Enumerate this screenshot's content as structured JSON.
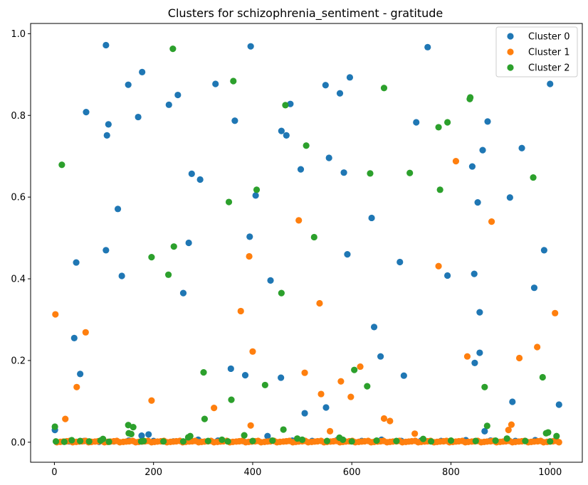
{
  "chart_data": {
    "type": "scatter",
    "title": "Clusters for schizophrenia_sentiment - gratitude",
    "xlabel": "",
    "ylabel": "",
    "xlim": [
      -48,
      1065
    ],
    "ylim": [
      -0.049,
      1.025
    ],
    "x_ticks": [
      0,
      200,
      400,
      600,
      800,
      1000
    ],
    "y_ticks": [
      0.0,
      0.2,
      0.4,
      0.6,
      0.8,
      1.0
    ],
    "y_tick_labels": [
      "0.0",
      "0.2",
      "0.4",
      "0.6",
      "0.8",
      "1.0"
    ],
    "grid": false,
    "legend_position": "top-right",
    "series": [
      {
        "name": "Cluster 0",
        "color": "#1f77b4",
        "points": [
          [
            1,
            0.03
          ],
          [
            40,
            0.255
          ],
          [
            44,
            0.44
          ],
          [
            52,
            0.167
          ],
          [
            64,
            0.808
          ],
          [
            104,
            0.972
          ],
          [
            104,
            0.47
          ],
          [
            106,
            0.751
          ],
          [
            109,
            0.778
          ],
          [
            128,
            0.571
          ],
          [
            136,
            0.407
          ],
          [
            149,
            0.875
          ],
          [
            169,
            0.796
          ],
          [
            177,
            0.906
          ],
          [
            176,
            0.016
          ],
          [
            190,
            0.019
          ],
          [
            231,
            0.826
          ],
          [
            249,
            0.85
          ],
          [
            260,
            0.365
          ],
          [
            271,
            0.488
          ],
          [
            277,
            0.657
          ],
          [
            294,
            0.643
          ],
          [
            325,
            0.877
          ],
          [
            356,
            0.18
          ],
          [
            364,
            0.787
          ],
          [
            385,
            0.164
          ],
          [
            394,
            0.503
          ],
          [
            396,
            0.969
          ],
          [
            406,
            0.604
          ],
          [
            436,
            0.396
          ],
          [
            457,
            0.158
          ],
          [
            458,
            0.762
          ],
          [
            468,
            0.751
          ],
          [
            476,
            0.828
          ],
          [
            497,
            0.668
          ],
          [
            505,
            0.071
          ],
          [
            547,
            0.874
          ],
          [
            548,
            0.085
          ],
          [
            554,
            0.696
          ],
          [
            576,
            0.854
          ],
          [
            584,
            0.66
          ],
          [
            591,
            0.46
          ],
          [
            596,
            0.893
          ],
          [
            640,
            0.549
          ],
          [
            645,
            0.282
          ],
          [
            658,
            0.21
          ],
          [
            697,
            0.441
          ],
          [
            705,
            0.163
          ],
          [
            730,
            0.783
          ],
          [
            753,
            0.967
          ],
          [
            793,
            0.408
          ],
          [
            843,
            0.675
          ],
          [
            847,
            0.412
          ],
          [
            848,
            0.194
          ],
          [
            854,
            0.587
          ],
          [
            858,
            0.318
          ],
          [
            858,
            0.219
          ],
          [
            864,
            0.715
          ],
          [
            868,
            0.027
          ],
          [
            874,
            0.785
          ],
          [
            919,
            0.599
          ],
          [
            924,
            0.099
          ],
          [
            943,
            0.72
          ],
          [
            968,
            0.378
          ],
          [
            988,
            0.47
          ],
          [
            1000,
            0.877
          ],
          [
            1018,
            0.092
          ],
          [
            30,
            0.002
          ],
          [
            60,
            0.003
          ],
          [
            90,
            0.001
          ],
          [
            120,
            0.002
          ],
          [
            150,
            0.004
          ],
          [
            200,
            0.003
          ],
          [
            240,
            0.002
          ],
          [
            290,
            0.006
          ],
          [
            330,
            0.004
          ],
          [
            380,
            0.003
          ],
          [
            430,
            0.015
          ],
          [
            480,
            0.004
          ],
          [
            520,
            0.003
          ],
          [
            570,
            0.005
          ],
          [
            620,
            0.003
          ],
          [
            660,
            0.006
          ],
          [
            700,
            0.003
          ],
          [
            740,
            0.004
          ],
          [
            780,
            0.003
          ],
          [
            830,
            0.005
          ],
          [
            880,
            0.004
          ],
          [
            930,
            0.003
          ],
          [
            970,
            0.005
          ],
          [
            1010,
            0.004
          ]
        ]
      },
      {
        "name": "Cluster 1",
        "color": "#ff7f0e",
        "points": [
          [
            2,
            0.313
          ],
          [
            22,
            0.057
          ],
          [
            45,
            0.135
          ],
          [
            63,
            0.269
          ],
          [
            196,
            0.102
          ],
          [
            322,
            0.084
          ],
          [
            376,
            0.321
          ],
          [
            393,
            0.455
          ],
          [
            396,
            0.041
          ],
          [
            400,
            0.222
          ],
          [
            493,
            0.543
          ],
          [
            505,
            0.17
          ],
          [
            535,
            0.34
          ],
          [
            538,
            0.118
          ],
          [
            556,
            0.027
          ],
          [
            578,
            0.149
          ],
          [
            598,
            0.111
          ],
          [
            617,
            0.185
          ],
          [
            665,
            0.058
          ],
          [
            677,
            0.052
          ],
          [
            727,
            0.021
          ],
          [
            775,
            0.431
          ],
          [
            810,
            0.688
          ],
          [
            833,
            0.21
          ],
          [
            882,
            0.54
          ],
          [
            916,
            0.03
          ],
          [
            922,
            0.043
          ],
          [
            938,
            0.206
          ],
          [
            974,
            0.233
          ],
          [
            1010,
            0.316
          ]
        ],
        "baseline_x": [
          5,
          12,
          18,
          25,
          31,
          37,
          44,
          50,
          56,
          63,
          69,
          75,
          82,
          88,
          94,
          101,
          107,
          113,
          120,
          126,
          132,
          139,
          145,
          151,
          158,
          164,
          170,
          177,
          183,
          189,
          196,
          202,
          208,
          215,
          221,
          227,
          234,
          240,
          246,
          253,
          259,
          265,
          272,
          278,
          284,
          291,
          297,
          303,
          310,
          316,
          322,
          329,
          335,
          341,
          348,
          354,
          360,
          367,
          373,
          379,
          386,
          392,
          398,
          405,
          411,
          417,
          424,
          430,
          436,
          443,
          449,
          455,
          462,
          468,
          474,
          481,
          487,
          493,
          500,
          506,
          512,
          519,
          525,
          531,
          538,
          544,
          550,
          557,
          563,
          569,
          576,
          582,
          588,
          595,
          601,
          607,
          614,
          620,
          626,
          633,
          639,
          645,
          652,
          658,
          664,
          671,
          677,
          683,
          690,
          696,
          702,
          709,
          715,
          721,
          728,
          734,
          740,
          747,
          753,
          759,
          766,
          772,
          778,
          785,
          791,
          797,
          804,
          810,
          816,
          823,
          829,
          835,
          842,
          848,
          854,
          861,
          867,
          873,
          880,
          886,
          892,
          899,
          905,
          911,
          918,
          924,
          930,
          937,
          943,
          949,
          956,
          962,
          968,
          975,
          981,
          987,
          994,
          1000,
          1006,
          1013,
          1018
        ]
      },
      {
        "name": "Cluster 2",
        "color": "#2ca02c",
        "points": [
          [
            1,
            0.038
          ],
          [
            3,
            0.002
          ],
          [
            15,
            0.679
          ],
          [
            35,
            0.005
          ],
          [
            52,
            0.003
          ],
          [
            93,
            0.004
          ],
          [
            98,
            0.008
          ],
          [
            149,
            0.042
          ],
          [
            150,
            0.022
          ],
          [
            155,
            0.02
          ],
          [
            159,
            0.037
          ],
          [
            175,
            0.002
          ],
          [
            196,
            0.453
          ],
          [
            230,
            0.41
          ],
          [
            239,
            0.963
          ],
          [
            241,
            0.479
          ],
          [
            270,
            0.012
          ],
          [
            274,
            0.015
          ],
          [
            301,
            0.171
          ],
          [
            303,
            0.057
          ],
          [
            338,
            0.006
          ],
          [
            352,
            0.588
          ],
          [
            357,
            0.104
          ],
          [
            361,
            0.884
          ],
          [
            383,
            0.017
          ],
          [
            408,
            0.618
          ],
          [
            425,
            0.14
          ],
          [
            458,
            0.365
          ],
          [
            462,
            0.031
          ],
          [
            466,
            0.825
          ],
          [
            490,
            0.009
          ],
          [
            508,
            0.726
          ],
          [
            524,
            0.502
          ],
          [
            575,
            0.011
          ],
          [
            582,
            0.006
          ],
          [
            605,
            0.177
          ],
          [
            631,
            0.137
          ],
          [
            637,
            0.658
          ],
          [
            665,
            0.867
          ],
          [
            717,
            0.659
          ],
          [
            744,
            0.008
          ],
          [
            775,
            0.771
          ],
          [
            778,
            0.618
          ],
          [
            793,
            0.783
          ],
          [
            838,
            0.84
          ],
          [
            839,
            0.844
          ],
          [
            868,
            0.135
          ],
          [
            873,
            0.04
          ],
          [
            913,
            0.009
          ],
          [
            966,
            0.648
          ],
          [
            985,
            0.159
          ],
          [
            992,
            0.022
          ],
          [
            996,
            0.024
          ],
          [
            1013,
            0.015
          ],
          [
            20,
            0.001
          ],
          [
            70,
            0.002
          ],
          [
            110,
            0.001
          ],
          [
            180,
            0.003
          ],
          [
            220,
            0.002
          ],
          [
            260,
            0.002
          ],
          [
            310,
            0.003
          ],
          [
            350,
            0.002
          ],
          [
            400,
            0.003
          ],
          [
            440,
            0.004
          ],
          [
            500,
            0.006
          ],
          [
            550,
            0.003
          ],
          [
            600,
            0.002
          ],
          [
            650,
            0.004
          ],
          [
            690,
            0.003
          ],
          [
            760,
            0.002
          ],
          [
            800,
            0.004
          ],
          [
            850,
            0.003
          ],
          [
            890,
            0.004
          ],
          [
            950,
            0.003
          ],
          [
            1000,
            0.002
          ]
        ]
      }
    ]
  }
}
